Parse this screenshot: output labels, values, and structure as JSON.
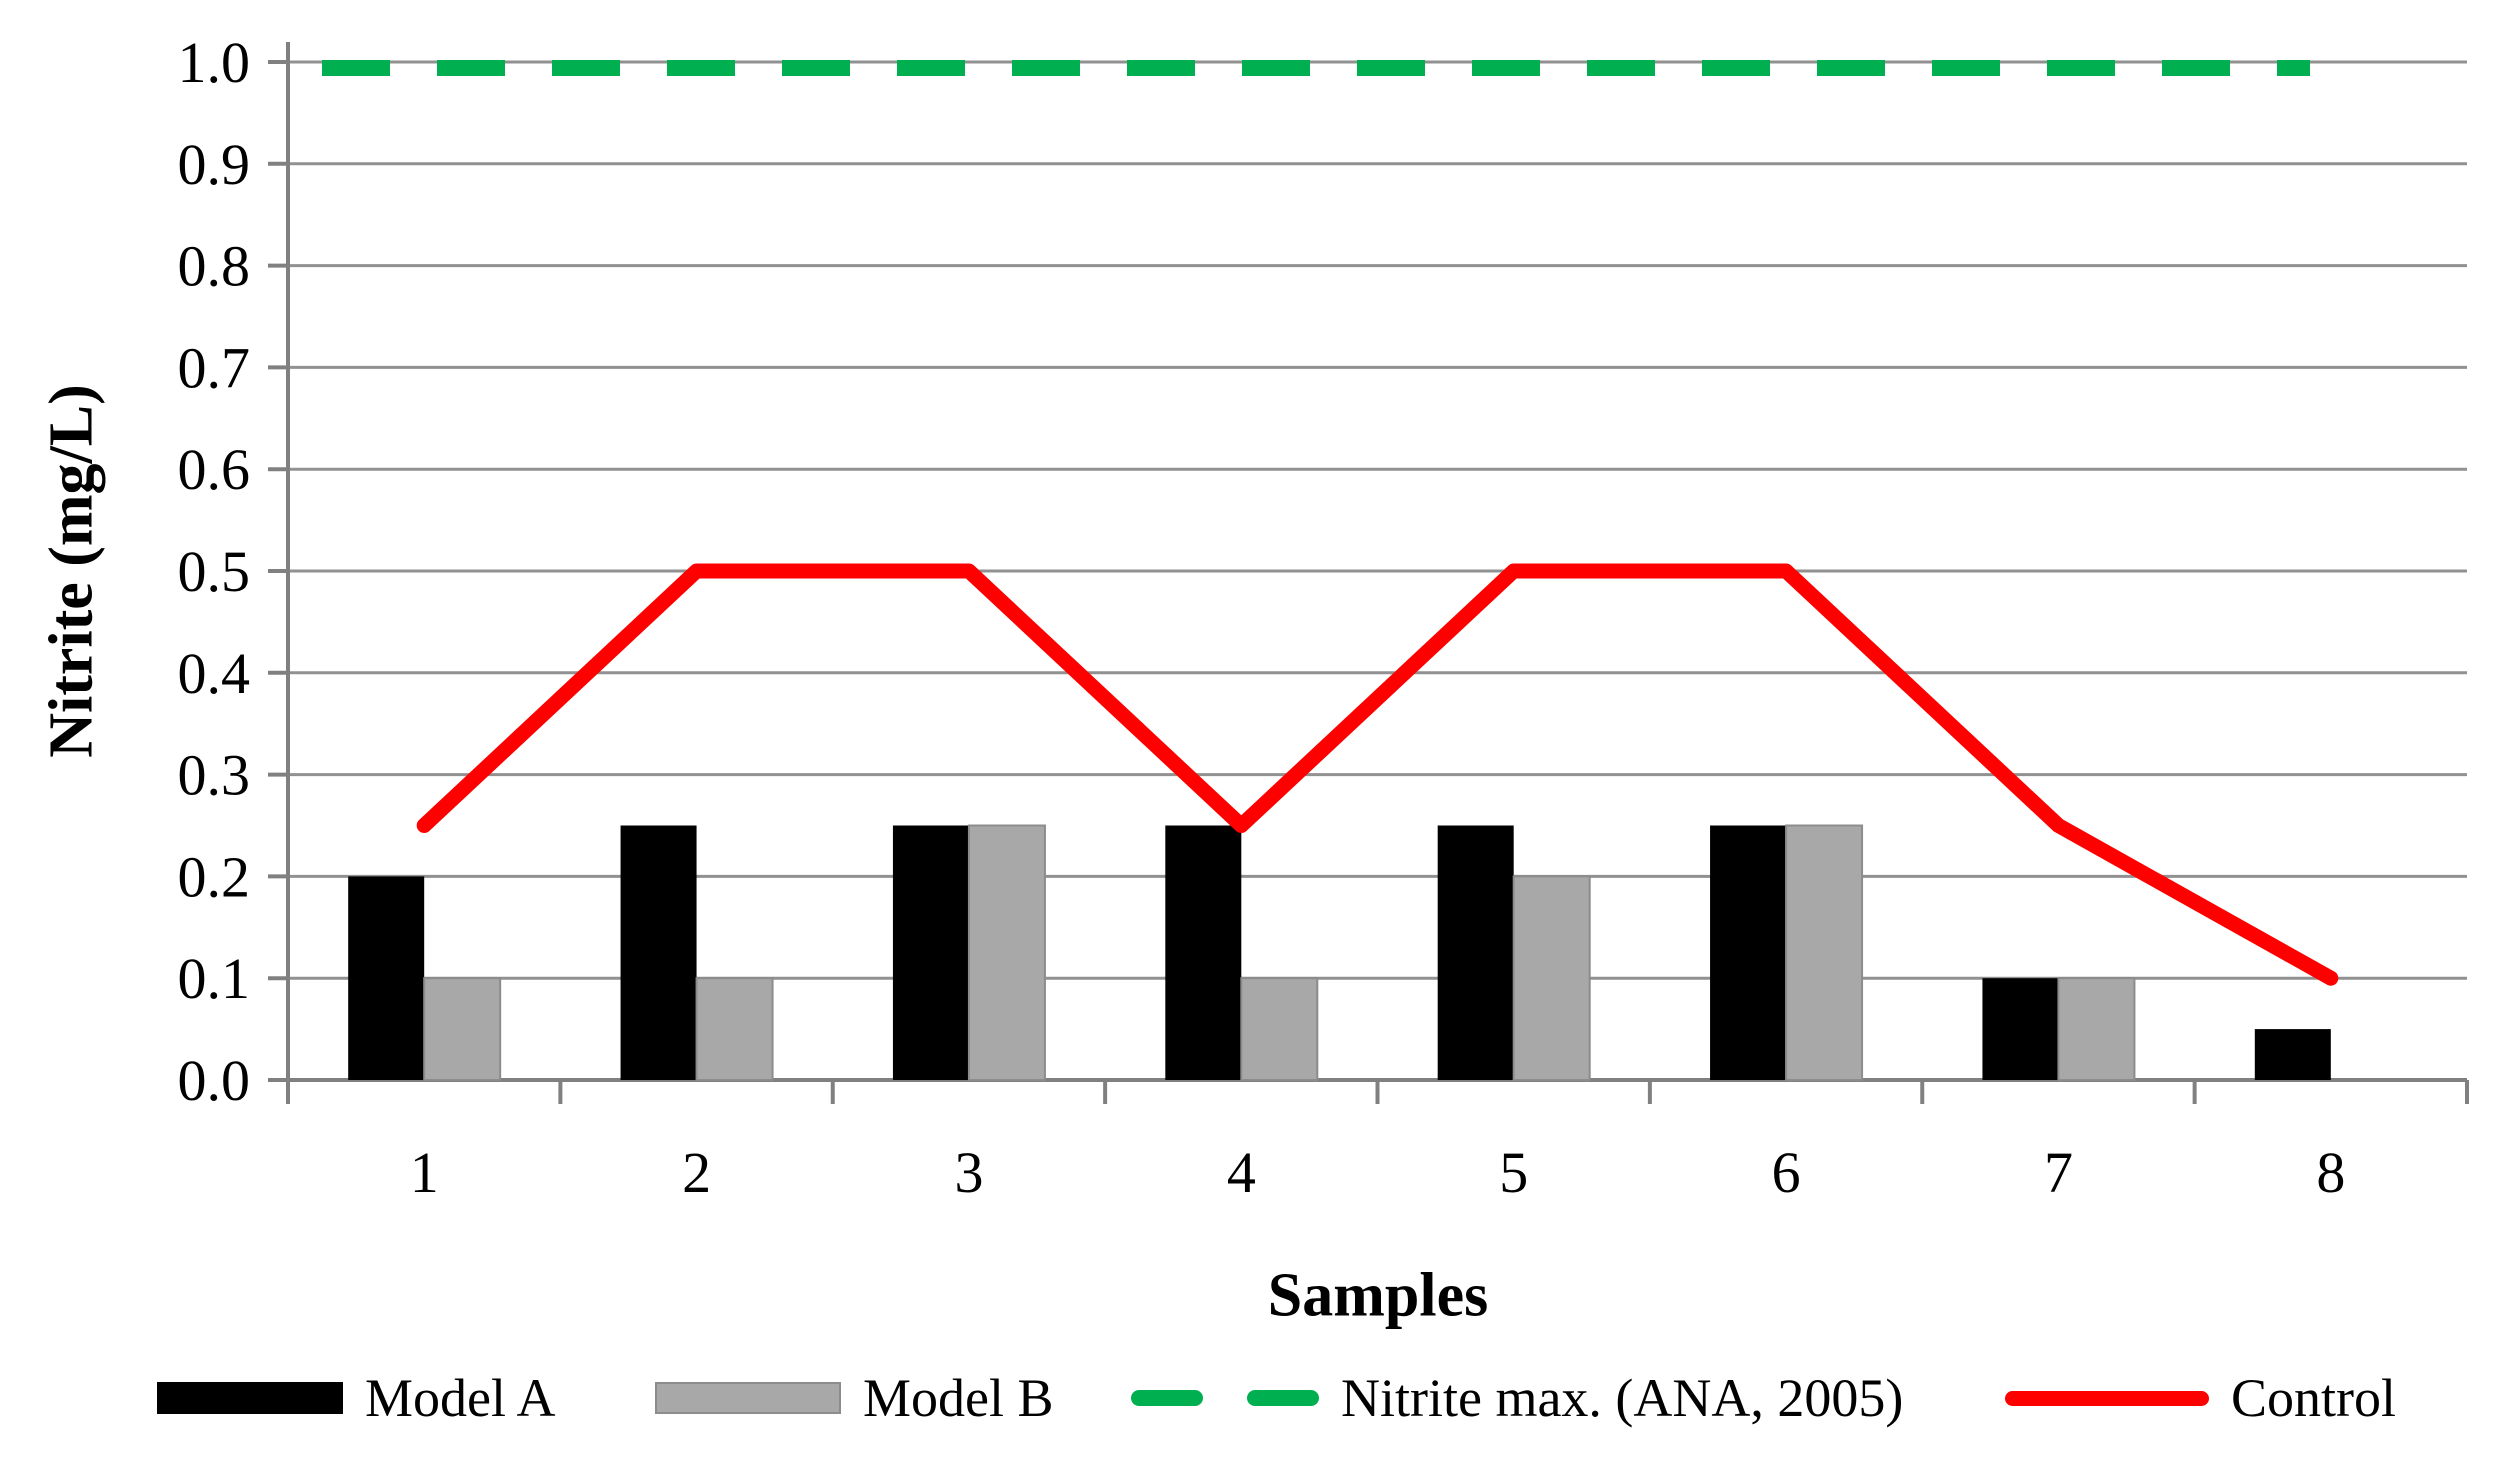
{
  "figure": {
    "background": "#ffffff"
  },
  "axes": {
    "grid_color": "#919191",
    "axis_color": "#808080",
    "text_color": "#000000"
  },
  "chart_data": {
    "type": "combo-bar-line",
    "title": "",
    "xlabel": "Samples",
    "ylabel": "Nitrite (mg/L)",
    "categories": [
      "1",
      "2",
      "3",
      "4",
      "5",
      "6",
      "7",
      "8"
    ],
    "ylim": [
      0.0,
      1.0
    ],
    "y_tick_step": 0.1,
    "y_tick_labels": [
      "0.0",
      "0.1",
      "0.2",
      "0.3",
      "0.4",
      "0.5",
      "0.6",
      "0.7",
      "0.8",
      "0.9",
      "1.0"
    ],
    "grid": "horizontal",
    "legend_position": "bottom",
    "series": [
      {
        "name": "Model A",
        "type": "bar",
        "color": "#000000",
        "values": [
          0.2,
          0.25,
          0.25,
          0.25,
          0.25,
          0.25,
          0.1,
          0.05
        ]
      },
      {
        "name": "Model B",
        "type": "bar",
        "color": "#a8a8a8",
        "values": [
          0.1,
          0.1,
          0.25,
          0.1,
          0.2,
          0.25,
          0.1,
          null
        ]
      },
      {
        "name": "Nitrite max. (ANA, 2005)",
        "type": "dashed-line",
        "color": "#00b050",
        "values": [
          1.0,
          1.0,
          1.0,
          1.0,
          1.0,
          1.0,
          1.0,
          1.0
        ]
      },
      {
        "name": "Control",
        "type": "line",
        "color": "#ff0000",
        "values": [
          0.25,
          0.5,
          0.5,
          0.25,
          0.5,
          0.5,
          0.25,
          0.1
        ]
      }
    ]
  }
}
